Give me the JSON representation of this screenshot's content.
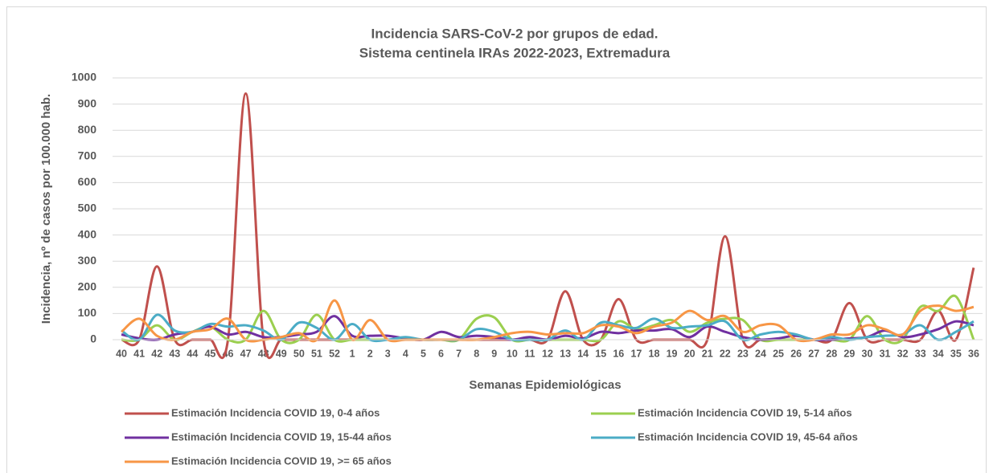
{
  "chart_data": {
    "type": "line",
    "title": "Incidencia SARS-CoV-2 por grupos de edad.",
    "subtitle": "Sistema centinela IRAs 2022-2023, Extremadura",
    "x_label": "Semanas Epidemiológicas",
    "y_label": "Incidencia, nº de casos por 100.000 hab.",
    "categories": [
      40,
      41,
      42,
      43,
      44,
      45,
      46,
      47,
      48,
      49,
      50,
      51,
      52,
      1,
      2,
      3,
      4,
      5,
      6,
      7,
      8,
      9,
      10,
      11,
      12,
      13,
      14,
      15,
      16,
      17,
      18,
      19,
      20,
      21,
      22,
      23,
      24,
      25,
      26,
      27,
      28,
      29,
      30,
      31,
      32,
      33,
      34,
      35,
      36
    ],
    "ylim": [
      0,
      1000
    ],
    "yticks": [
      0,
      100,
      200,
      300,
      400,
      500,
      600,
      700,
      800,
      900,
      1000
    ],
    "grid": true,
    "legend": "bottom",
    "series": [
      {
        "name": "Estimación Incidencia COVID 19, 0-4 años",
        "color": "#c0504d",
        "values": [
          0,
          0,
          280,
          0,
          0,
          0,
          0,
          940,
          0,
          0,
          0,
          0,
          0,
          0,
          0,
          0,
          0,
          0,
          0,
          0,
          0,
          0,
          0,
          0,
          0,
          185,
          0,
          0,
          155,
          0,
          0,
          0,
          0,
          0,
          395,
          0,
          0,
          0,
          0,
          0,
          0,
          140,
          0,
          0,
          0,
          0,
          110,
          0,
          275
        ]
      },
      {
        "name": "Estimación Incidencia COVID 19, 5-14 años",
        "color": "#9bcf4f",
        "values": [
          0,
          0,
          55,
          0,
          30,
          50,
          0,
          0,
          110,
          0,
          0,
          95,
          0,
          0,
          0,
          0,
          0,
          0,
          0,
          0,
          80,
          85,
          0,
          0,
          0,
          0,
          0,
          0,
          70,
          40,
          55,
          75,
          30,
          65,
          80,
          75,
          0,
          0,
          0,
          0,
          0,
          0,
          90,
          0,
          0,
          125,
          110,
          165,
          0
        ]
      },
      {
        "name": "Estimación Incidencia COVID 19, 15-44 años",
        "color": "#7030a0",
        "values": [
          20,
          5,
          0,
          20,
          30,
          50,
          20,
          30,
          10,
          10,
          20,
          30,
          90,
          15,
          15,
          15,
          5,
          0,
          30,
          10,
          15,
          10,
          0,
          10,
          0,
          15,
          5,
          30,
          25,
          35,
          35,
          40,
          10,
          50,
          30,
          10,
          0,
          5,
          15,
          0,
          0,
          5,
          10,
          35,
          10,
          20,
          40,
          70,
          55
        ]
      },
      {
        "name": "Estimación Incidencia COVID 19, 45-64 años",
        "color": "#4bacc6",
        "values": [
          35,
          0,
          95,
          35,
          30,
          60,
          50,
          55,
          35,
          0,
          65,
          45,
          0,
          60,
          0,
          0,
          10,
          0,
          0,
          0,
          40,
          30,
          0,
          0,
          0,
          35,
          0,
          65,
          55,
          45,
          80,
          45,
          50,
          55,
          70,
          0,
          20,
          30,
          20,
          0,
          10,
          0,
          10,
          15,
          20,
          55,
          0,
          30,
          70
        ]
      },
      {
        "name": "Estimación Incidencia COVID 19, >= 65 años",
        "color": "#f79646",
        "values": [
          30,
          80,
          15,
          0,
          30,
          40,
          80,
          0,
          0,
          10,
          25,
          0,
          150,
          0,
          75,
          0,
          0,
          0,
          0,
          0,
          0,
          10,
          25,
          30,
          20,
          25,
          25,
          55,
          50,
          25,
          50,
          65,
          110,
          75,
          90,
          30,
          55,
          55,
          0,
          0,
          20,
          20,
          55,
          40,
          20,
          110,
          130,
          110,
          125
        ]
      }
    ]
  }
}
